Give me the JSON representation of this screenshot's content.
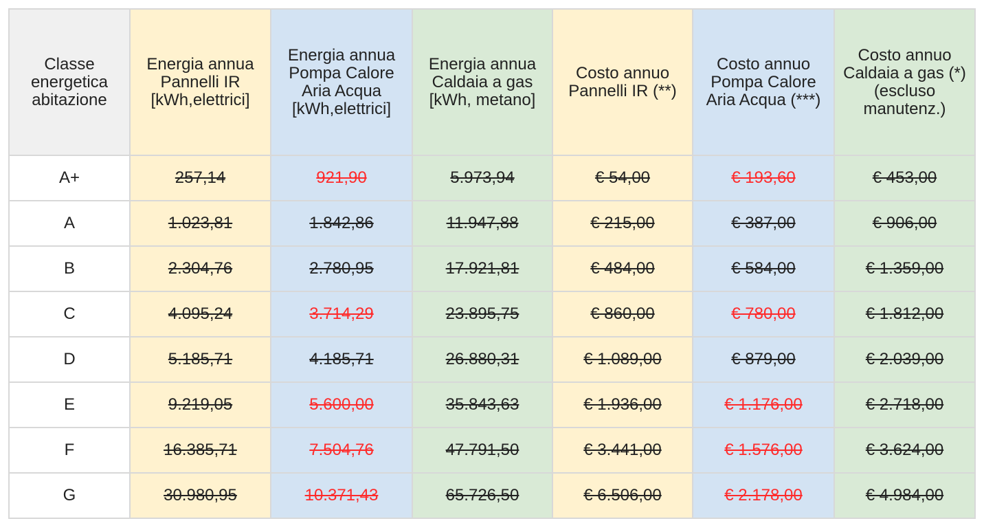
{
  "table": {
    "headers": [
      "Classe energetica abitazione",
      "Energia annua Pannelli IR [kWh,elettrici]",
      "Energia annua Pompa Calore Aria Acqua [kWh,elettrici]",
      "Energia annua Caldaia a gas [kWh, metano]",
      "Costo annuo Pannelli IR (**)",
      "Costo annuo Pompa Calore Aria Acqua (***)",
      "Costo annuo Caldaia a gas (*) (escluso manutenz.)"
    ],
    "rows": [
      {
        "classe": "A+",
        "ir": "257,14",
        "hp": "921,90",
        "gas": "5.973,94",
        "cost_ir": "€ 54,00",
        "cost_hp": "€ 193,60",
        "cost_gas": "€ 453,00"
      },
      {
        "classe": "A",
        "ir": "1.023,81",
        "hp": "1.842,86",
        "gas": "11.947,88",
        "cost_ir": "€ 215,00",
        "cost_hp": "€ 387,00",
        "cost_gas": "€ 906,00"
      },
      {
        "classe": "B",
        "ir": "2.304,76",
        "hp": "2.780,95",
        "gas": "17.921,81",
        "cost_ir": "€ 484,00",
        "cost_hp": "€ 584,00",
        "cost_gas": "€ 1.359,00"
      },
      {
        "classe": "C",
        "ir": "4.095,24",
        "hp": "3.714,29",
        "gas": "23.895,75",
        "cost_ir": "€ 860,00",
        "cost_hp": "€ 780,00",
        "cost_gas": "€ 1.812,00"
      },
      {
        "classe": "D",
        "ir": "5.185,71",
        "hp": "4.185,71",
        "gas": "26.880,31",
        "cost_ir": "€ 1.089,00",
        "cost_hp": "€ 879,00",
        "cost_gas": "€ 2.039,00"
      },
      {
        "classe": "E",
        "ir": "9.219,05",
        "hp": "5.600,00",
        "gas": "35.843,63",
        "cost_ir": "€ 1.936,00",
        "cost_hp": "€ 1.176,00",
        "cost_gas": "€ 2.718,00"
      },
      {
        "classe": "F",
        "ir": "16.385,71",
        "hp": "7.504,76",
        "gas": "47.791,50",
        "cost_ir": "€ 3.441,00",
        "cost_hp": "€ 1.576,00",
        "cost_gas": "€ 3.624,00"
      },
      {
        "classe": "G",
        "ir": "30.980,95",
        "hp": "10.371,43",
        "gas": "65.726,50",
        "cost_ir": "€ 6.506,00",
        "cost_hp": "€ 2.178,00",
        "cost_gas": "€ 4.984,00"
      }
    ],
    "red_cells": {
      "A+": [
        "hp",
        "cost_hp"
      ],
      "C": [
        "hp",
        "cost_hp"
      ],
      "E": [
        "hp",
        "cost_hp"
      ],
      "F": [
        "hp",
        "cost_hp"
      ],
      "G": [
        "hp",
        "cost_hp"
      ]
    }
  },
  "colors": {
    "ir_column": "#fff2cf",
    "hp_column": "#d3e3f3",
    "gas_column": "#d9ead6",
    "header_first": "#f0f0f0",
    "highlight_text": "#ff2b2b",
    "border": "#d8d8d8"
  }
}
